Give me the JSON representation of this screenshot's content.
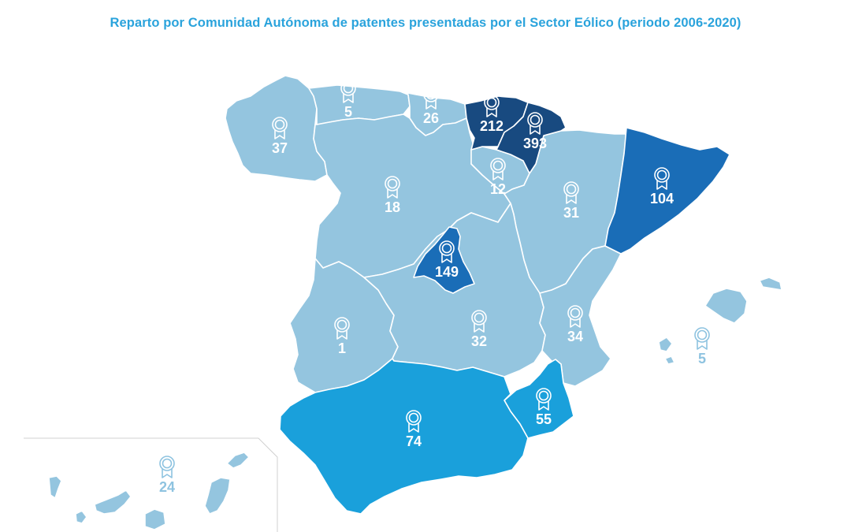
{
  "title": "Reparto por Comunidad Autónoma de patentes presentadas por el Sector Eólico (periodo 2006-2020)",
  "colors": {
    "tier_1": "#94c5df",
    "tier_2": "#1aa0db",
    "tier_3": "#1a6db7",
    "tier_4": "#184a80",
    "label_outside": "#8ec3e0"
  },
  "icon": "award-ribbon-icon",
  "regions": [
    {
      "key": "galicia",
      "value": "37",
      "tier": "tier_1"
    },
    {
      "key": "asturias",
      "value": "5",
      "tier": "tier_1"
    },
    {
      "key": "cantabria",
      "value": "26",
      "tier": "tier_1"
    },
    {
      "key": "pais_vasco",
      "value": "212",
      "tier": "tier_4"
    },
    {
      "key": "navarra",
      "value": "393",
      "tier": "tier_4"
    },
    {
      "key": "la_rioja",
      "value": "12",
      "tier": "tier_1"
    },
    {
      "key": "castilla_y_leon",
      "value": "18",
      "tier": "tier_1"
    },
    {
      "key": "aragon",
      "value": "31",
      "tier": "tier_1"
    },
    {
      "key": "cataluna",
      "value": "104",
      "tier": "tier_3"
    },
    {
      "key": "madrid",
      "value": "149",
      "tier": "tier_3"
    },
    {
      "key": "extremadura",
      "value": "1",
      "tier": "tier_1"
    },
    {
      "key": "castilla_la_mancha",
      "value": "32",
      "tier": "tier_1"
    },
    {
      "key": "valencia",
      "value": "34",
      "tier": "tier_1"
    },
    {
      "key": "murcia",
      "value": "55",
      "tier": "tier_2"
    },
    {
      "key": "andalucia",
      "value": "74",
      "tier": "tier_2"
    },
    {
      "key": "baleares",
      "value": "5",
      "tier": "tier_1"
    },
    {
      "key": "canarias",
      "value": "24",
      "tier": "tier_1"
    }
  ]
}
